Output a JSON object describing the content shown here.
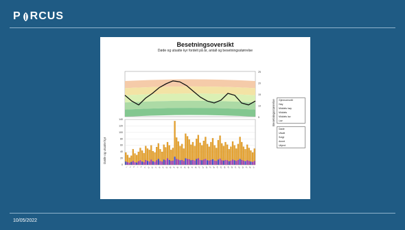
{
  "header": {
    "logo_text": "P",
    "logo_text_rest": "RCUS"
  },
  "footer": {
    "date": "10/05/2022"
  },
  "figure": {
    "title": "Besetningsoversikt",
    "subtitle": "Døde og utsatte kyr fordelt på år, antall og besetningsstørrelse",
    "note": "",
    "yaxis_top_right": "Besetningsstørrelse",
    "yaxis_bottom_left": "Døde og utsatte kyr",
    "legend_top": [
      "Gjennomsnitt",
      "Høy",
      "Middels høy",
      "Middels",
      "Middels lav",
      "Lav"
    ],
    "legend_bottom": [
      "Døde",
      "Utsatt",
      "Solgt",
      "Annet",
      "Ukjent"
    ],
    "footnote": ""
  },
  "colors": {
    "band_top": "#f4c8a4",
    "band_2": "#f2e1a0",
    "band_3": "#d9efb0",
    "band_4": "#a8d8a0",
    "band_5": "#7cc48a",
    "bar_orange": "#e8a32e",
    "bar_purple": "#9b3fbf",
    "bar_blue": "#3a4bd0",
    "line": "#111111"
  },
  "chart_data": {
    "type": "bar",
    "title": "Besetningsoversikt",
    "categories": [
      "1",
      "2",
      "3",
      "4",
      "5",
      "6",
      "7",
      "8",
      "9",
      "10",
      "11",
      "12",
      "13",
      "14",
      "15",
      "16",
      "17",
      "18",
      "19",
      "20",
      "21",
      "22",
      "23",
      "24",
      "25",
      "26",
      "27",
      "28",
      "29",
      "30",
      "31",
      "32",
      "33",
      "34",
      "35",
      "36",
      "37",
      "38",
      "39",
      "40",
      "41",
      "42",
      "43",
      "44",
      "45",
      "46",
      "47",
      "48",
      "49",
      "50",
      "51",
      "52",
      "53",
      "54",
      "55",
      "56",
      "57",
      "58",
      "59",
      "60",
      "61",
      "62",
      "63",
      "64",
      "65",
      "66",
      "67",
      "68",
      "69",
      "70",
      "71",
      "72"
    ],
    "series": [
      {
        "values": [
          38,
          30,
          22,
          28,
          48,
          35,
          30,
          40,
          52,
          44,
          36,
          58,
          50,
          46,
          60,
          42,
          38,
          55,
          66,
          48,
          40,
          62,
          54,
          70,
          60,
          46,
          52,
          135,
          84,
          72,
          58,
          64,
          50,
          96,
          88,
          78,
          62,
          70,
          58,
          80,
          92,
          68,
          60,
          74,
          86,
          64,
          56,
          70,
          82,
          60,
          52,
          76,
          90,
          66,
          58,
          70,
          62,
          48,
          56,
          72,
          60,
          50,
          64,
          86,
          70,
          56,
          48,
          62,
          52,
          44,
          38,
          50
        ]
      },
      {
        "values": [
          10,
          8,
          6,
          9,
          12,
          8,
          7,
          11,
          14,
          10,
          8,
          15,
          12,
          10,
          16,
          11,
          9,
          14,
          18,
          12,
          10,
          16,
          14,
          20,
          15,
          12,
          13,
          25,
          18,
          16,
          14,
          15,
          12,
          20,
          18,
          17,
          14,
          15,
          13,
          18,
          20,
          15,
          14,
          16,
          18,
          14,
          13,
          15,
          17,
          13,
          12,
          16,
          19,
          14,
          13,
          15,
          14,
          11,
          13,
          16,
          14,
          12,
          15,
          18,
          15,
          13,
          11,
          14,
          12,
          10,
          9,
          12
        ]
      }
    ],
    "line": [
      148,
      142,
      138,
      145,
      150,
      156,
      160,
      163,
      162,
      158,
      152,
      146,
      142,
      140,
      143,
      150,
      148,
      140,
      138,
      142
    ],
    "ylim_bottom": [
      0,
      140
    ],
    "ylim_top": [
      0,
      60
    ],
    "grid": true,
    "legend_position": "right"
  }
}
